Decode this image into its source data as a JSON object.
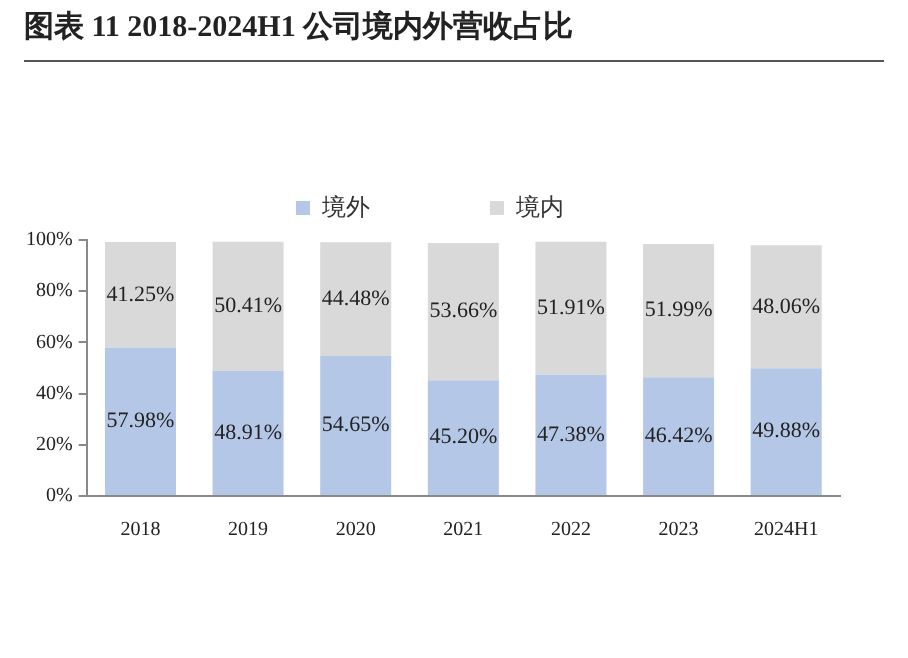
{
  "chart_data": {
    "type": "bar",
    "title": "图表 11 2018-2024H1 公司境内外营收占比",
    "categories": [
      "2018",
      "2019",
      "2020",
      "2021",
      "2022",
      "2023",
      "2024H1"
    ],
    "stacked": true,
    "legend": "top",
    "series": [
      {
        "name": "境外",
        "color": "#b4c7e7",
        "values": [
          57.98,
          48.91,
          54.65,
          45.2,
          47.38,
          46.42,
          49.88
        ],
        "value_labels": [
          "57.98%",
          "48.91%",
          "54.65%",
          "45.20%",
          "47.38%",
          "46.42%",
          "49.88%"
        ]
      },
      {
        "name": "境内",
        "color": "#d9d9d9",
        "values": [
          41.25,
          50.41,
          44.48,
          53.66,
          51.91,
          51.99,
          48.06
        ],
        "value_labels": [
          "41.25%",
          "50.41%",
          "44.48%",
          "53.66%",
          "51.91%",
          "51.99%",
          "48.06%"
        ]
      }
    ],
    "ylim": [
      0,
      100
    ],
    "yticks": [
      {
        "value": 0,
        "label": "0%"
      },
      {
        "value": 20,
        "label": "20%"
      },
      {
        "value": 40,
        "label": "40%"
      },
      {
        "value": 60,
        "label": "60%"
      },
      {
        "value": 80,
        "label": "80%"
      },
      {
        "value": 100,
        "label": "100%"
      }
    ]
  }
}
